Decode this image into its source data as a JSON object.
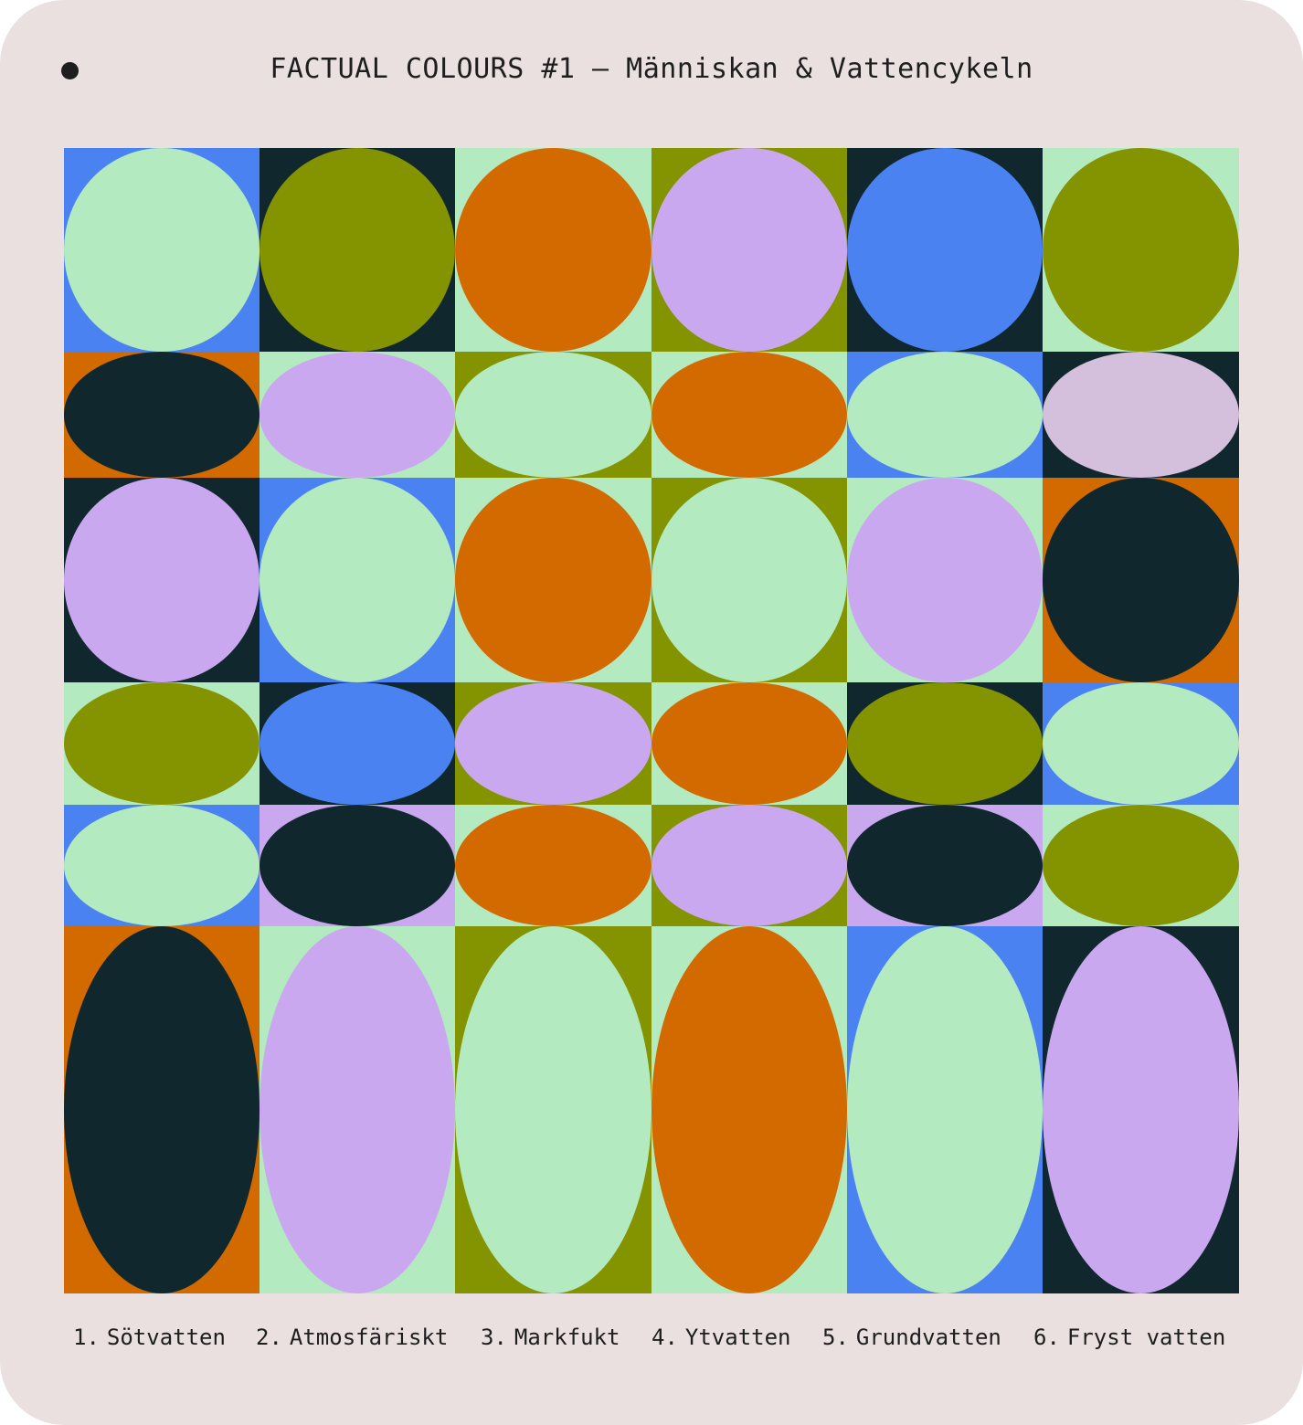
{
  "title": "FACTUAL COLOURS #1 – Människan & Vattencykeln",
  "palette": {
    "blue": "#4a82f2",
    "mint": "#b3eac0",
    "olive": "#849300",
    "dark": "#10282d",
    "orange": "#d26a00",
    "lilac": "#c9a8ef",
    "mauve": "#d4bfdc",
    "card": "#e9e0df"
  },
  "categories": [
    {
      "number": "1.",
      "name": "Sötvatten"
    },
    {
      "number": "2.",
      "name": "Atmosfäriskt"
    },
    {
      "number": "3.",
      "name": "Markfukt"
    },
    {
      "number": "4.",
      "name": "Ytvatten"
    },
    {
      "number": "5.",
      "name": "Grundvatten"
    },
    {
      "number": "6.",
      "name": "Fryst vatten"
    }
  ],
  "grid": [
    [
      {
        "bg": "blue",
        "shape": "mint"
      },
      {
        "bg": "dark",
        "shape": "olive"
      },
      {
        "bg": "mint",
        "shape": "orange"
      },
      {
        "bg": "olive",
        "shape": "lilac"
      },
      {
        "bg": "dark",
        "shape": "blue"
      },
      {
        "bg": "mint",
        "shape": "olive"
      }
    ],
    [
      {
        "bg": "orange",
        "shape": "dark"
      },
      {
        "bg": "mint",
        "shape": "lilac"
      },
      {
        "bg": "olive",
        "shape": "mint"
      },
      {
        "bg": "mint",
        "shape": "orange"
      },
      {
        "bg": "blue",
        "shape": "mint"
      },
      {
        "bg": "dark",
        "shape": "mauve"
      }
    ],
    [
      {
        "bg": "dark",
        "shape": "lilac"
      },
      {
        "bg": "blue",
        "shape": "mint"
      },
      {
        "bg": "mint",
        "shape": "orange"
      },
      {
        "bg": "olive",
        "shape": "mint"
      },
      {
        "bg": "mint",
        "shape": "lilac"
      },
      {
        "bg": "orange",
        "shape": "dark"
      }
    ],
    [
      {
        "bg": "mint",
        "shape": "olive"
      },
      {
        "bg": "dark",
        "shape": "blue"
      },
      {
        "bg": "olive",
        "shape": "lilac"
      },
      {
        "bg": "mint",
        "shape": "orange"
      },
      {
        "bg": "dark",
        "shape": "olive"
      },
      {
        "bg": "blue",
        "shape": "mint"
      }
    ],
    [
      {
        "bg": "blue",
        "shape": "mint"
      },
      {
        "bg": "lilac",
        "shape": "dark"
      },
      {
        "bg": "mint",
        "shape": "orange"
      },
      {
        "bg": "olive",
        "shape": "lilac"
      },
      {
        "bg": "lilac",
        "shape": "dark"
      },
      {
        "bg": "mint",
        "shape": "olive"
      }
    ],
    [
      {
        "bg": "orange",
        "shape": "dark"
      },
      {
        "bg": "mint",
        "shape": "lilac"
      },
      {
        "bg": "olive",
        "shape": "mint"
      },
      {
        "bg": "mint",
        "shape": "orange"
      },
      {
        "bg": "blue",
        "shape": "mint"
      },
      {
        "bg": "dark",
        "shape": "lilac"
      }
    ]
  ]
}
